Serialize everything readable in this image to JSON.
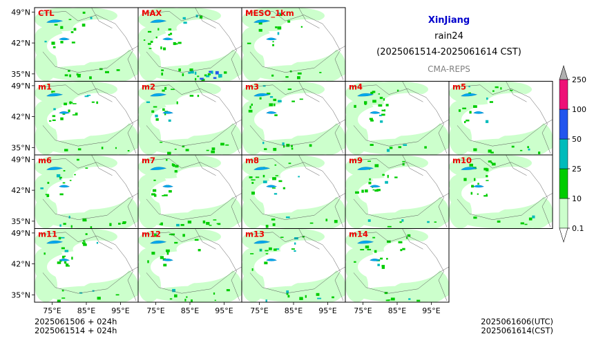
{
  "header": {
    "region": "XinJiang",
    "variable": "rain24",
    "period": "(2025061514-2025061614 CST)",
    "source": "CMA-REPS"
  },
  "footer": {
    "init_utc_line": "2025061506  +  024h",
    "init_cst_line": "2025061514  +  024h",
    "valid_utc": "2025061606(UTC)",
    "valid_cst": "2025061614(CST)"
  },
  "chart_data": {
    "type": "heatmap",
    "title": "rain24",
    "panels": [
      {
        "label": "CTL",
        "row": 0,
        "col": 0,
        "intensity": 0.45
      },
      {
        "label": "MAX",
        "row": 0,
        "col": 1,
        "intensity": 0.85
      },
      {
        "label": "MESO_1km",
        "row": 0,
        "col": 2,
        "intensity": 0.3
      },
      {
        "label": "m1",
        "row": 1,
        "col": 0,
        "intensity": 0.5
      },
      {
        "label": "m2",
        "row": 1,
        "col": 1,
        "intensity": 0.55
      },
      {
        "label": "m3",
        "row": 1,
        "col": 2,
        "intensity": 0.5
      },
      {
        "label": "m4",
        "row": 1,
        "col": 3,
        "intensity": 0.55
      },
      {
        "label": "m5",
        "row": 1,
        "col": 4,
        "intensity": 0.5
      },
      {
        "label": "m6",
        "row": 2,
        "col": 0,
        "intensity": 0.55
      },
      {
        "label": "m7",
        "row": 2,
        "col": 1,
        "intensity": 0.5
      },
      {
        "label": "m8",
        "row": 2,
        "col": 2,
        "intensity": 0.55
      },
      {
        "label": "m9",
        "row": 2,
        "col": 3,
        "intensity": 0.5
      },
      {
        "label": "m10",
        "row": 2,
        "col": 4,
        "intensity": 0.45
      },
      {
        "label": "m11",
        "row": 3,
        "col": 0,
        "intensity": 0.55
      },
      {
        "label": "m12",
        "row": 3,
        "col": 1,
        "intensity": 0.5
      },
      {
        "label": "m13",
        "row": 3,
        "col": 2,
        "intensity": 0.55
      },
      {
        "label": "m14",
        "row": 3,
        "col": 3,
        "intensity": 0.5
      }
    ],
    "x_ticks": [
      "75°E",
      "85°E",
      "95°E"
    ],
    "y_ticks": [
      "49°N",
      "42°N",
      "35°N"
    ],
    "colorbar": {
      "levels": [
        "0.1",
        "10",
        "25",
        "50",
        "100",
        "250"
      ],
      "colors": [
        "#ccffcc",
        "#00cc00",
        "#00bbbb",
        "#2255ee",
        "#ee1177"
      ],
      "over_color": "#b0b0b0",
      "under_color": "#ffffff"
    },
    "grid": false
  }
}
